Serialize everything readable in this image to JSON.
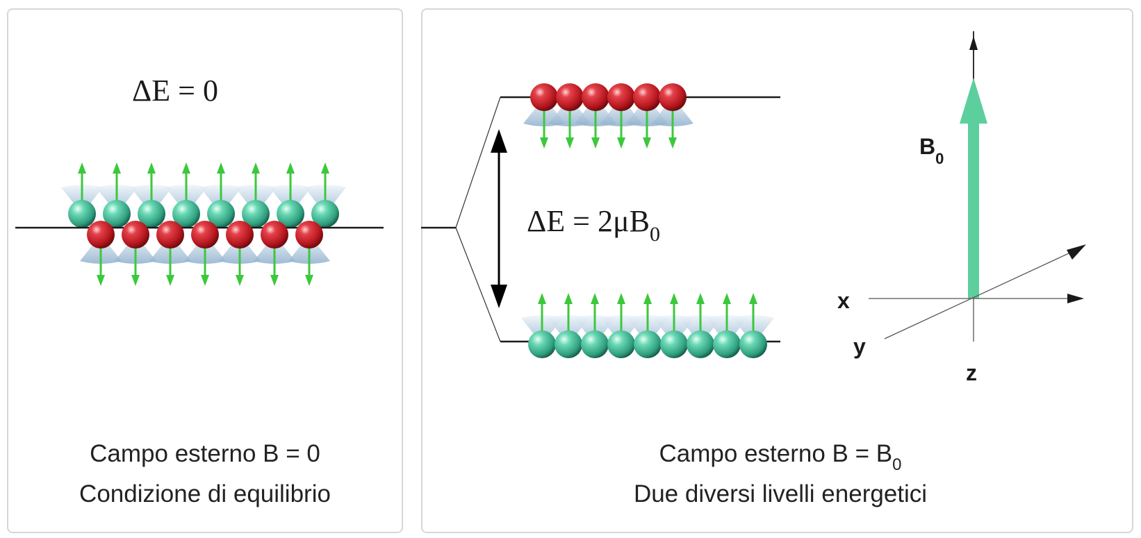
{
  "left": {
    "equation": "ΔE = 0",
    "caption_line1": "Campo esterno B = 0",
    "caption_line2": "Condizione di equilibrio"
  },
  "right": {
    "equation_main": "ΔE = 2μB",
    "equation_sub": "0",
    "caption_line1_main": "Campo esterno B = B",
    "caption_line1_sub": "0",
    "caption_line2": "Due diversi livelli energetici",
    "field_label_main": "B",
    "field_label_sub": "0",
    "axis_x": "x",
    "axis_y": "y",
    "axis_z": "z"
  },
  "colors": {
    "spin_up_sphere": "#58c9a6",
    "spin_down_sphere": "#c8232a",
    "spin_arrow": "#3cc83c",
    "field_arrow": "#5ccf9c",
    "cone": "#a9c4dc",
    "level_line": "#1a1a1a"
  },
  "icons": {
    "up_spin": "green-up-arrow-icon",
    "down_spin": "green-down-arrow-icon",
    "field": "field-arrow-icon"
  }
}
